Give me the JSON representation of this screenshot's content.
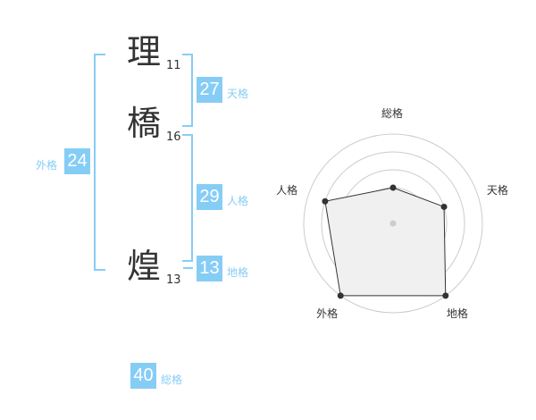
{
  "name": {
    "characters": [
      {
        "char": "理",
        "strokes": "11"
      },
      {
        "char": "橋",
        "strokes": "16"
      },
      {
        "char": "煌",
        "strokes": "13"
      }
    ]
  },
  "fortunes": {
    "tenkaku": {
      "value": "27",
      "label": "天格"
    },
    "jinkaku": {
      "value": "29",
      "label": "人格"
    },
    "chikaku": {
      "value": "13",
      "label": "地格"
    },
    "gaikaku": {
      "value": "24",
      "label": "外格"
    },
    "soukaku": {
      "value": "40",
      "label": "総格"
    }
  },
  "colors": {
    "accent": "#86cdf6",
    "radar_fill": "#f0f0f0",
    "radar_line": "#333333"
  },
  "chart_data": {
    "type": "radar",
    "axes": [
      "総格",
      "天格",
      "地格",
      "外格",
      "人格"
    ],
    "values": [
      2,
      3,
      5,
      5,
      4
    ],
    "range": [
      0,
      5
    ],
    "rings": 5
  }
}
